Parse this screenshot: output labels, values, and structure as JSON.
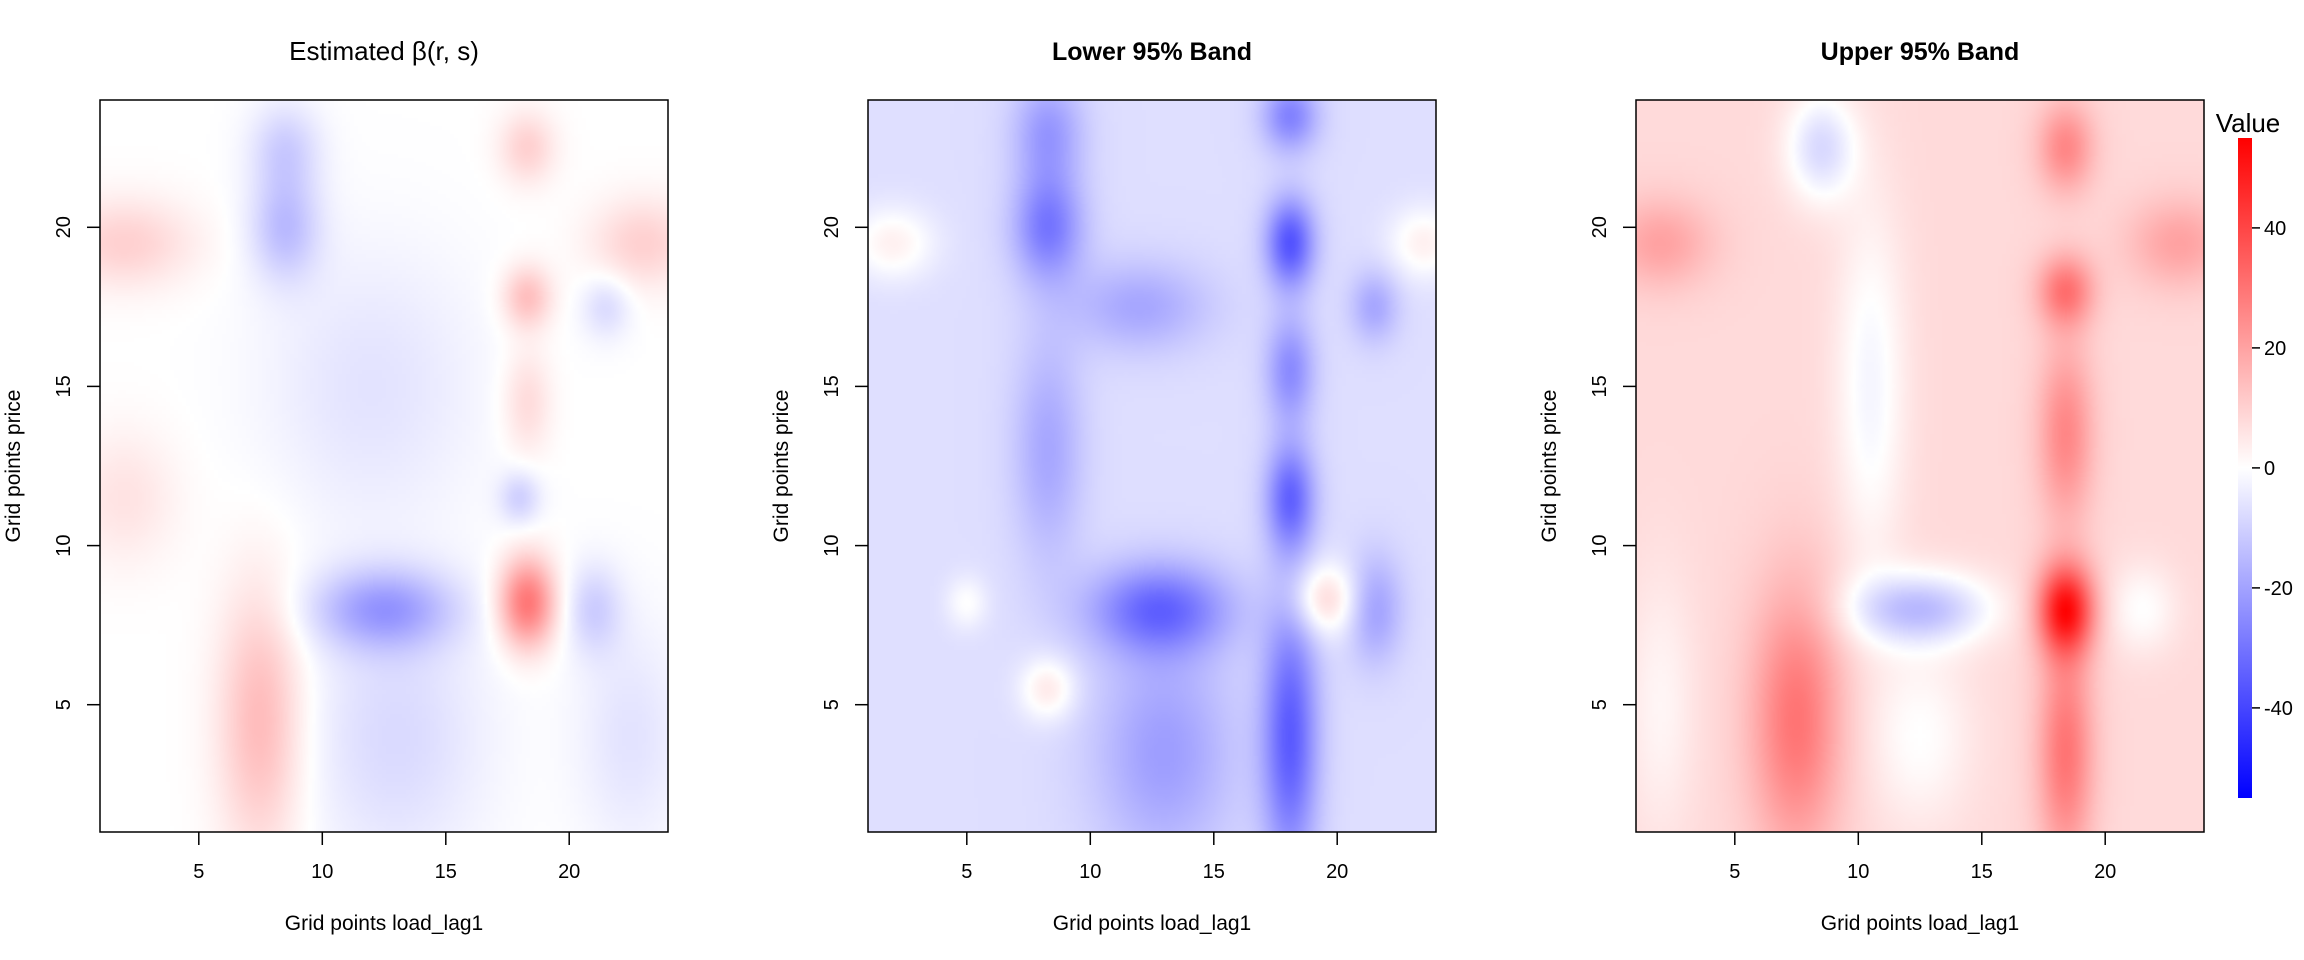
{
  "chart_data": [
    {
      "type": "heatmap",
      "title": "Estimated β(r, s)",
      "title_bold": false,
      "xlabel": "Grid points load_lag1",
      "ylabel": "Grid points price",
      "xlim": [
        1,
        24
      ],
      "ylim": [
        1,
        24
      ],
      "xticks": [
        "5",
        "10",
        "15",
        "20"
      ],
      "yticks": [
        "5",
        "10",
        "15",
        "20"
      ],
      "features": [
        {
          "x": 7.5,
          "y": 4.5,
          "v": 15,
          "sx": 1.2,
          "sy": 3.0
        },
        {
          "x": 2,
          "y": 19.5,
          "v": 10,
          "sx": 2.0,
          "sy": 1.0
        },
        {
          "x": 23,
          "y": 19.5,
          "v": 10,
          "sx": 1.5,
          "sy": 1.0
        },
        {
          "x": 2,
          "y": 11.5,
          "v": 6,
          "sx": 1.5,
          "sy": 1.5
        },
        {
          "x": 8.5,
          "y": 20,
          "v": -14,
          "sx": 1.0,
          "sy": 1.2
        },
        {
          "x": 8.5,
          "y": 22.5,
          "v": -10,
          "sx": 1.0,
          "sy": 1.0
        },
        {
          "x": 12.5,
          "y": 8,
          "v": -20,
          "sx": 2.0,
          "sy": 0.9
        },
        {
          "x": 18.3,
          "y": 8.2,
          "v": 30,
          "sx": 0.8,
          "sy": 1.0
        },
        {
          "x": 18.3,
          "y": 17.8,
          "v": 14,
          "sx": 0.7,
          "sy": 0.7
        },
        {
          "x": 18.3,
          "y": 22.5,
          "v": 10,
          "sx": 0.8,
          "sy": 0.8
        },
        {
          "x": 18.3,
          "y": 14.5,
          "v": 8,
          "sx": 0.7,
          "sy": 1.2
        },
        {
          "x": 18,
          "y": 11.5,
          "v": -10,
          "sx": 0.6,
          "sy": 0.6
        },
        {
          "x": 21,
          "y": 8,
          "v": -10,
          "sx": 0.8,
          "sy": 1.0
        },
        {
          "x": 21.5,
          "y": 17.5,
          "v": -8,
          "sx": 0.7,
          "sy": 0.7
        },
        {
          "x": 13,
          "y": 4,
          "v": -8,
          "sx": 2.5,
          "sy": 3.0
        },
        {
          "x": 12,
          "y": 15,
          "v": -6,
          "sx": 3.0,
          "sy": 3.0
        },
        {
          "x": 22.5,
          "y": 4,
          "v": -6,
          "sx": 1.5,
          "sy": 2.5
        }
      ]
    },
    {
      "type": "heatmap",
      "title": "Lower 95% Band",
      "title_bold": true,
      "xlabel": "Grid points load_lag1",
      "ylabel": "Grid points price",
      "xlim": [
        1,
        24
      ],
      "ylim": [
        1,
        24
      ],
      "xticks": [
        "5",
        "10",
        "15",
        "20"
      ],
      "yticks": [
        "5",
        "10",
        "15",
        "20"
      ],
      "baseline": -7,
      "features": [
        {
          "x": 8.3,
          "y": 20,
          "v": -22,
          "sx": 1.0,
          "sy": 1.2
        },
        {
          "x": 8.3,
          "y": 23,
          "v": -15,
          "sx": 1.0,
          "sy": 1.2
        },
        {
          "x": 8.3,
          "y": 13,
          "v": -12,
          "sx": 1.0,
          "sy": 2.5
        },
        {
          "x": 12.8,
          "y": 8,
          "v": -25,
          "sx": 2.0,
          "sy": 1.0
        },
        {
          "x": 18.1,
          "y": 19.5,
          "v": -30,
          "sx": 0.7,
          "sy": 1.0
        },
        {
          "x": 18.1,
          "y": 11.5,
          "v": -26,
          "sx": 0.7,
          "sy": 1.2
        },
        {
          "x": 18.1,
          "y": 15.5,
          "v": -18,
          "sx": 0.7,
          "sy": 1.2
        },
        {
          "x": 18.1,
          "y": 4,
          "v": -28,
          "sx": 0.8,
          "sy": 3.0
        },
        {
          "x": 18.1,
          "y": 23.5,
          "v": -20,
          "sx": 0.8,
          "sy": 0.8
        },
        {
          "x": 19.5,
          "y": 8.3,
          "v": 16,
          "sx": 1.0,
          "sy": 0.8
        },
        {
          "x": 8.3,
          "y": 5.5,
          "v": 12,
          "sx": 0.8,
          "sy": 0.7
        },
        {
          "x": 5,
          "y": 8.2,
          "v": 7,
          "sx": 0.6,
          "sy": 0.6
        },
        {
          "x": 2,
          "y": 19.5,
          "v": 10,
          "sx": 1.2,
          "sy": 0.8
        },
        {
          "x": 23.5,
          "y": 19.5,
          "v": 10,
          "sx": 1.0,
          "sy": 0.8
        },
        {
          "x": 13,
          "y": 3.5,
          "v": -14,
          "sx": 2.0,
          "sy": 2.5
        },
        {
          "x": 21.5,
          "y": 8,
          "v": -14,
          "sx": 0.8,
          "sy": 1.2
        },
        {
          "x": 21.5,
          "y": 17.5,
          "v": -12,
          "sx": 0.7,
          "sy": 0.8
        },
        {
          "x": 12,
          "y": 17.5,
          "v": -12,
          "sx": 2.0,
          "sy": 1.0
        }
      ]
    },
    {
      "type": "heatmap",
      "title": "Upper 95% Band",
      "title_bold": true,
      "xlabel": "Grid points load_lag1",
      "ylabel": "Grid points price",
      "xlim": [
        1,
        24
      ],
      "ylim": [
        1,
        24
      ],
      "xticks": [
        "5",
        "10",
        "15",
        "20"
      ],
      "yticks": [
        "5",
        "10",
        "15",
        "20"
      ],
      "baseline": 8,
      "features": [
        {
          "x": 7.5,
          "y": 4.5,
          "v": 22,
          "sx": 1.3,
          "sy": 3.0
        },
        {
          "x": 18.4,
          "y": 8,
          "v": 42,
          "sx": 0.8,
          "sy": 1.0
        },
        {
          "x": 18.4,
          "y": 18,
          "v": 22,
          "sx": 0.8,
          "sy": 0.8
        },
        {
          "x": 18.4,
          "y": 22.5,
          "v": 18,
          "sx": 0.8,
          "sy": 1.0
        },
        {
          "x": 18.4,
          "y": 13.5,
          "v": 18,
          "sx": 0.8,
          "sy": 2.0
        },
        {
          "x": 18.4,
          "y": 3.5,
          "v": 22,
          "sx": 0.8,
          "sy": 2.5
        },
        {
          "x": 2,
          "y": 19.5,
          "v": 12,
          "sx": 1.5,
          "sy": 1.0
        },
        {
          "x": 23,
          "y": 19.5,
          "v": 12,
          "sx": 1.5,
          "sy": 1.0
        },
        {
          "x": 12.5,
          "y": 8,
          "v": -22,
          "sx": 2.0,
          "sy": 0.8
        },
        {
          "x": 8.5,
          "y": 22.5,
          "v": -16,
          "sx": 1.0,
          "sy": 1.2
        },
        {
          "x": 10.5,
          "y": 15,
          "v": -10,
          "sx": 1.0,
          "sy": 4.0
        },
        {
          "x": 12.5,
          "y": 4,
          "v": -8,
          "sx": 1.5,
          "sy": 2.0
        },
        {
          "x": 21.5,
          "y": 8,
          "v": -8,
          "sx": 1.0,
          "sy": 1.0
        },
        {
          "x": 2,
          "y": 5,
          "v": -6,
          "sx": 1.0,
          "sy": 3.0
        }
      ]
    }
  ],
  "colorbar": {
    "title": "Value",
    "min": -55,
    "max": 55,
    "ticks": [
      40,
      20,
      0,
      -20,
      -40
    ],
    "tick_labels": [
      "40",
      "20",
      "0",
      "-20",
      "-40"
    ],
    "low_color": "#0000ff",
    "mid_color": "#ffffff",
    "high_color": "#ff0000"
  }
}
